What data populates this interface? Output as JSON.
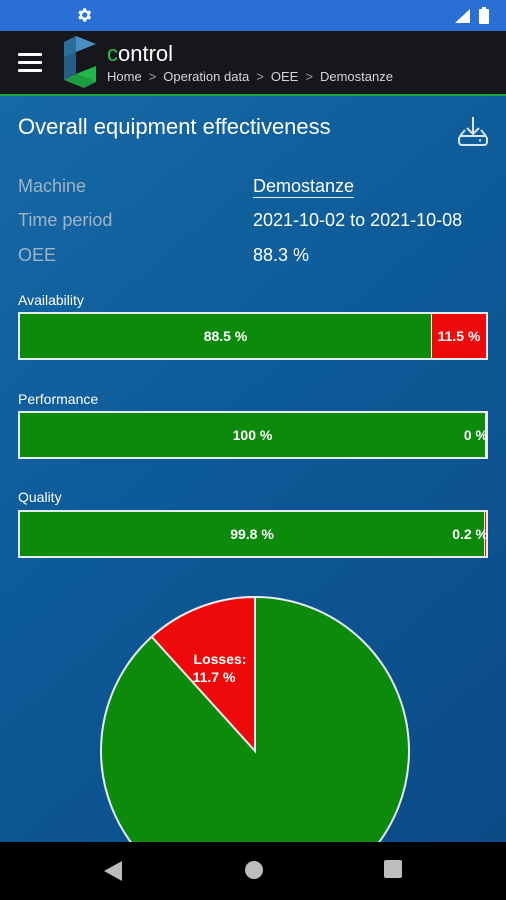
{
  "app": {
    "title_first_letter": "c",
    "title_rest": "ontrol",
    "breadcrumb": [
      "Home",
      "Operation data",
      "OEE",
      "Demostanze"
    ]
  },
  "page": {
    "title": "Overall equipment effectiveness",
    "info": [
      {
        "label": "Machine",
        "value": "Demostanze"
      },
      {
        "label": "Time period",
        "value": "2021-10-02 to 2021-10-08"
      },
      {
        "label": "OEE",
        "value": "88.3 %"
      }
    ]
  },
  "metrics": [
    {
      "label": "Availability",
      "good_fraction": 0.885,
      "good_text": "88.5 %",
      "bad_text": "11.5 %"
    },
    {
      "label": "Performance",
      "good_fraction": 1.0,
      "good_text": "100 %",
      "bad_text": "0 %"
    },
    {
      "label": "Quality",
      "good_fraction": 0.998,
      "good_text": "99.8 %",
      "bad_text": "0.2 %"
    }
  ],
  "pie": {
    "losses_label": "Losses:",
    "losses_value": "11.7 %",
    "losses_fraction": 0.117
  },
  "colors": {
    "good": "#0c8a0c",
    "bad": "#ee0a0a",
    "accent": "#27c24a",
    "status_bar": "#2a6fd6"
  },
  "icons": [
    "settings-gear-icon",
    "signal-icon",
    "battery-icon",
    "menu-icon",
    "download-icon",
    "nav-back-icon",
    "nav-home-icon",
    "nav-recents-icon"
  ]
}
